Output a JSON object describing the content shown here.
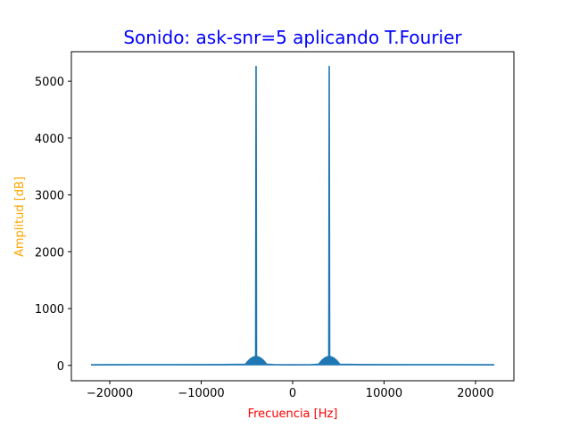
{
  "chart_data": {
    "type": "line",
    "title": "Sonido: ask-snr=5 aplicando T.Fourier",
    "xlabel": "Frecuencia [Hz]",
    "ylabel": "Amplitud [dB]",
    "xlim": [
      -24200,
      24200
    ],
    "ylim": [
      -270,
      5520
    ],
    "x_ticks": [
      -20000,
      -10000,
      0,
      10000,
      20000
    ],
    "x_tick_labels": [
      "−20000",
      "−10000",
      "0",
      "10000",
      "20000"
    ],
    "y_ticks": [
      0,
      1000,
      2000,
      3000,
      4000,
      5000
    ],
    "y_tick_labels": [
      "0",
      "1000",
      "2000",
      "3000",
      "4000",
      "5000"
    ],
    "grid": false,
    "colors": {
      "title": "#0000ff",
      "xlabel": "#ff0000",
      "ylabel": "#ffa500",
      "series": "#1f77b4"
    },
    "series": [
      {
        "x": [
          -22050,
          -18000,
          -13000,
          -8000,
          -5200,
          -4800,
          -4400,
          -4200,
          -4050,
          -4000,
          -3950,
          -3800,
          -3600,
          -3200,
          -2000,
          0,
          2000,
          3200,
          3600,
          3800,
          3950,
          4000,
          4050,
          4200,
          4400,
          4800,
          5200,
          8000,
          13000,
          18000,
          22050
        ],
        "y": [
          10,
          12,
          12,
          14,
          20,
          40,
          85,
          100,
          110,
          5260,
          110,
          95,
          70,
          25,
          12,
          10,
          12,
          25,
          70,
          95,
          110,
          5260,
          110,
          100,
          85,
          40,
          20,
          14,
          12,
          12,
          10
        ]
      }
    ]
  }
}
